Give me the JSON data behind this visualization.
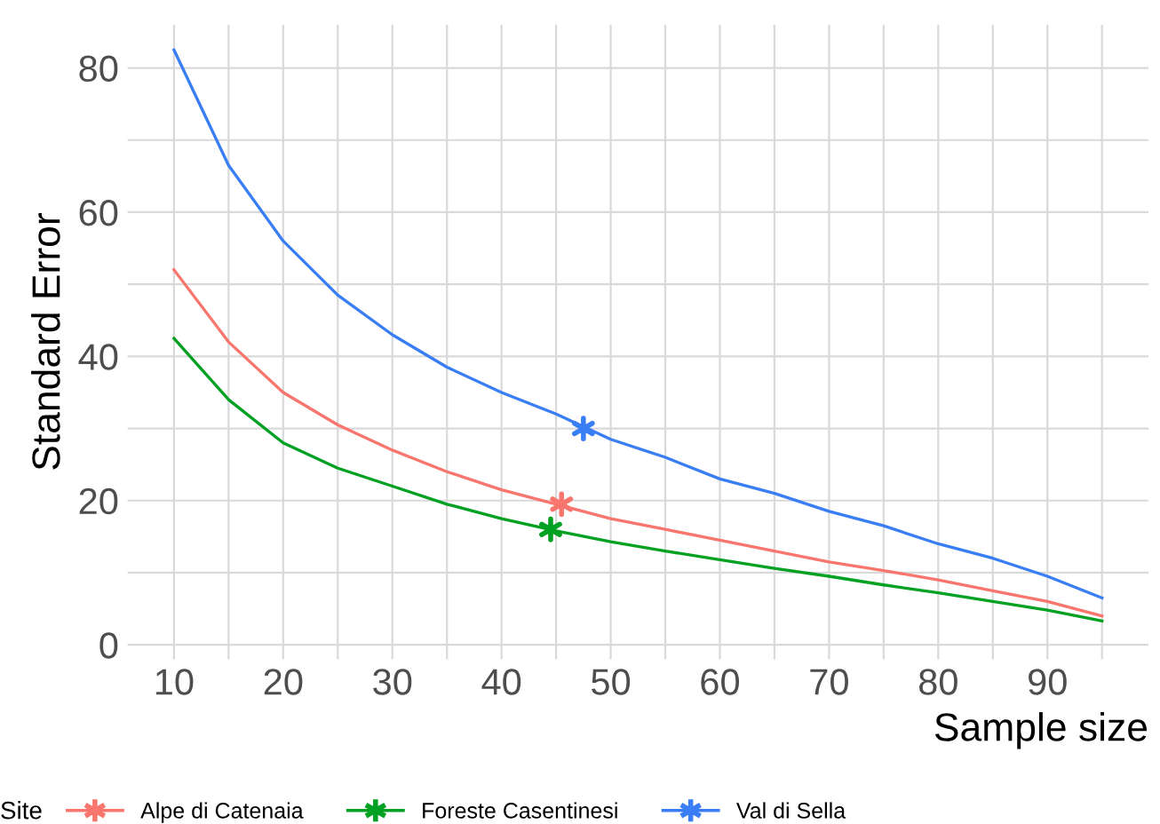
{
  "chart_data": {
    "type": "line",
    "xlabel": "Sample size",
    "ylabel": "Standard Error",
    "legend_title": "Site",
    "legend": "bottom",
    "grid": true,
    "xlim": [
      5.75,
      99.25
    ],
    "ylim": [
      -2,
      86
    ],
    "xticks": [
      10,
      {
        "value": 15,
        "label": null
      },
      20,
      {
        "value": 25,
        "label": null
      },
      30,
      {
        "value": 35,
        "label": null
      },
      40,
      {
        "value": 45,
        "label": null
      },
      50,
      {
        "value": 55,
        "label": null
      },
      60,
      {
        "value": 65,
        "label": null
      },
      70,
      {
        "value": 75,
        "label": null
      },
      80,
      {
        "value": 85,
        "label": null
      },
      90,
      {
        "value": 95,
        "label": null
      }
    ],
    "yticks": [
      0,
      {
        "value": 10,
        "label": null
      },
      20,
      {
        "value": 30,
        "label": null
      },
      40,
      {
        "value": 50,
        "label": null
      },
      60,
      {
        "value": 70,
        "label": null
      },
      80
    ],
    "x": [
      10,
      15,
      20,
      25,
      30,
      35,
      40,
      45,
      50,
      55,
      60,
      65,
      70,
      75,
      80,
      85,
      90,
      95
    ],
    "series": [
      {
        "name": "Alpe di Catenaia",
        "color": "#f8766d",
        "values": [
          52,
          42,
          35,
          30.5,
          27,
          24,
          21.5,
          19.5,
          17.5,
          16,
          14.5,
          13,
          11.5,
          10.3,
          9,
          7.5,
          6,
          4
        ]
      },
      {
        "name": "Foreste Casentinesi",
        "color": "#00a023",
        "values": [
          42.5,
          34,
          28,
          24.5,
          22,
          19.5,
          17.5,
          15.8,
          14.3,
          13,
          11.8,
          10.6,
          9.5,
          8.3,
          7.2,
          6,
          4.8,
          3.3
        ]
      },
      {
        "name": "Val di Sella",
        "color": "#3a7ef5",
        "values": [
          82.5,
          66.5,
          56,
          48.5,
          43,
          38.5,
          35,
          32,
          28.5,
          26,
          23,
          21,
          18.5,
          16.5,
          14,
          12,
          9.5,
          6.5
        ]
      },
      {
        "type": "scatter",
        "marker": "cross",
        "color": "#f8766d",
        "x": [
          45.5
        ],
        "values": [
          19.5
        ]
      },
      {
        "type": "scatter",
        "marker": "cross",
        "color": "#00a023",
        "x": [
          44.5
        ],
        "values": [
          16
        ]
      },
      {
        "type": "scatter",
        "marker": "cross",
        "color": "#3a7ef5",
        "x": [
          47.5
        ],
        "values": [
          30
        ]
      }
    ]
  }
}
